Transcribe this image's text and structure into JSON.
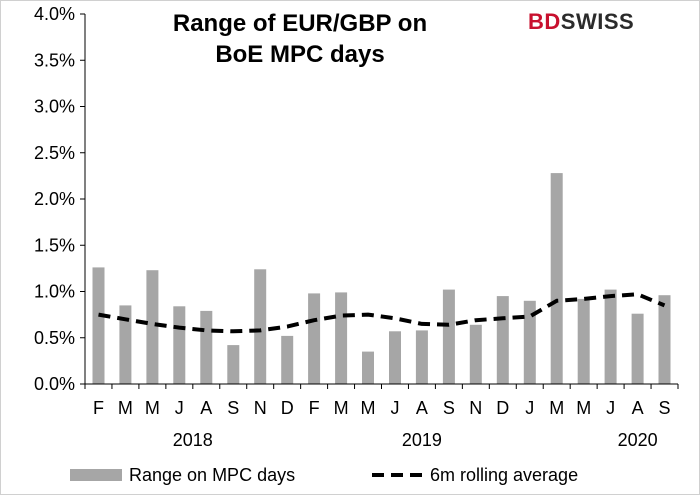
{
  "chart_data": {
    "type": "bar",
    "title": "Range of EUR/GBP on BoE MPC days",
    "brand": "BDSWISS",
    "categories": [
      "F",
      "M",
      "M",
      "J",
      "A",
      "S",
      "N",
      "D",
      "F",
      "M",
      "M",
      "J",
      "A",
      "S",
      "N",
      "D",
      "J",
      "M",
      "M",
      "J",
      "A",
      "S"
    ],
    "year_labels": [
      {
        "label": "2018",
        "at_index": 3.5
      },
      {
        "label": "2019",
        "at_index": 12
      },
      {
        "label": "2020",
        "at_index": 20
      }
    ],
    "series": [
      {
        "name": "Range on MPC days",
        "type": "bar",
        "color": "#a6a6a6",
        "values": [
          1.26,
          0.85,
          1.23,
          0.84,
          0.79,
          0.42,
          1.24,
          0.52,
          0.98,
          0.99,
          0.35,
          0.57,
          0.58,
          1.02,
          0.64,
          0.95,
          0.9,
          2.28,
          0.92,
          1.02,
          0.76,
          0.96
        ]
      },
      {
        "name": "6m rolling average",
        "type": "line",
        "color": "#000000",
        "style": "dashed",
        "values": [
          0.75,
          0.7,
          0.65,
          0.61,
          0.58,
          0.57,
          0.58,
          0.62,
          0.69,
          0.74,
          0.75,
          0.71,
          0.65,
          0.64,
          0.69,
          0.71,
          0.73,
          0.9,
          0.92,
          0.95,
          0.97,
          0.85
        ]
      }
    ],
    "ylim": [
      0,
      4.0
    ],
    "ytick_labels": [
      "0.0%",
      "0.5%",
      "1.0%",
      "1.5%",
      "2.0%",
      "2.5%",
      "3.0%",
      "3.5%",
      "4.0%"
    ],
    "ytick_values": [
      0,
      0.5,
      1.0,
      1.5,
      2.0,
      2.5,
      3.0,
      3.5,
      4.0
    ],
    "grid": false,
    "legend_position": "bottom"
  }
}
